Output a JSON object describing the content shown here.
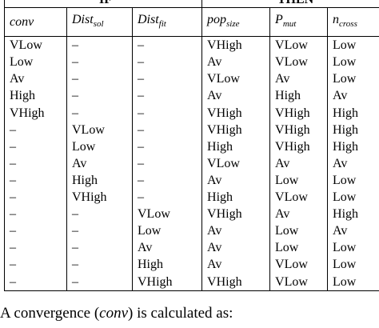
{
  "table": {
    "groups": [
      "IF",
      "THEN"
    ],
    "columns": [
      {
        "base": "conv"
      },
      {
        "base": "Dist",
        "sub": "sol"
      },
      {
        "base": "Dist",
        "sub": "fit"
      },
      {
        "base": "pop",
        "sub": "size"
      },
      {
        "base": "P",
        "sub": "mut"
      },
      {
        "base": "n",
        "sub": "cross"
      }
    ],
    "rows": [
      [
        "VLow",
        "–",
        "–",
        "VHigh",
        "VLow",
        "Low"
      ],
      [
        "Low",
        "–",
        "–",
        "Av",
        "VLow",
        "Low"
      ],
      [
        "Av",
        "–",
        "–",
        "VLow",
        "Av",
        "Low"
      ],
      [
        "High",
        "–",
        "–",
        "Av",
        "High",
        "Av"
      ],
      [
        "VHigh",
        "–",
        "–",
        "VHigh",
        "VHigh",
        "High"
      ],
      [
        "–",
        "VLow",
        "–",
        "VHigh",
        "VHigh",
        "High"
      ],
      [
        "–",
        "Low",
        "–",
        "High",
        "VHigh",
        "High"
      ],
      [
        "–",
        "Av",
        "–",
        "VLow",
        "Av",
        "Av"
      ],
      [
        "–",
        "High",
        "–",
        "Av",
        "Low",
        "Low"
      ],
      [
        "–",
        "VHigh",
        "–",
        "High",
        "VLow",
        "Low"
      ],
      [
        "–",
        "–",
        "VLow",
        "VHigh",
        "Av",
        "High"
      ],
      [
        "–",
        "–",
        "Low",
        "Av",
        "Low",
        "Av"
      ],
      [
        "–",
        "–",
        "Av",
        "Av",
        "Low",
        "Low"
      ],
      [
        "–",
        "–",
        "High",
        "Av",
        "VLow",
        "Low"
      ],
      [
        "–",
        "–",
        "VHigh",
        "VHigh",
        "VLow",
        "Low"
      ]
    ]
  },
  "caption": {
    "before": "A convergence (",
    "term": "conv",
    "after": ") is calculated as:"
  }
}
